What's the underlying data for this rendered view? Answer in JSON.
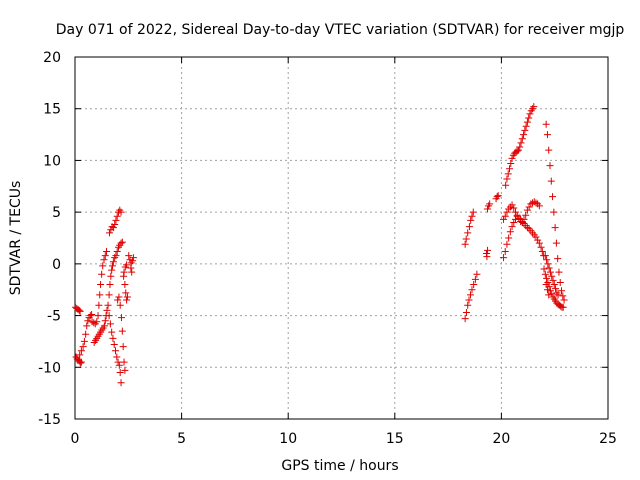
{
  "chart_data": {
    "type": "scatter",
    "title": "Day 071 of 2022, Sidereal Day-to-day VTEC variation (SDTVAR) for receiver mgjp",
    "xlabel": "GPS time / hours",
    "ylabel": "SDTVAR / TECUs",
    "xlim": [
      0,
      25
    ],
    "ylim": [
      -15,
      20
    ],
    "xticks": [
      0,
      5,
      10,
      15,
      20,
      25
    ],
    "yticks": [
      -15,
      -10,
      -5,
      0,
      5,
      10,
      15,
      20
    ],
    "grid": true,
    "marker": "+",
    "series": [
      {
        "name": "SDTVAR",
        "color": "#e00000",
        "points": [
          [
            0.02,
            -4.2
          ],
          [
            0.08,
            -4.3
          ],
          [
            0.14,
            -4.4
          ],
          [
            0.2,
            -4.5
          ],
          [
            0.24,
            -4.6
          ],
          [
            0.05,
            -9.0
          ],
          [
            0.1,
            -9.2
          ],
          [
            0.15,
            -9.3
          ],
          [
            0.2,
            -9.4
          ],
          [
            0.25,
            -9.6
          ],
          [
            0.3,
            -9.5
          ],
          [
            0.22,
            -8.8
          ],
          [
            0.3,
            -8.4
          ],
          [
            0.38,
            -8.0
          ],
          [
            0.44,
            -7.5
          ],
          [
            0.5,
            -6.8
          ],
          [
            0.55,
            -6.0
          ],
          [
            0.6,
            -5.5
          ],
          [
            0.66,
            -5.2
          ],
          [
            0.72,
            -5.0
          ],
          [
            0.78,
            -4.9
          ],
          [
            0.8,
            -5.6
          ],
          [
            0.88,
            -5.7
          ],
          [
            0.95,
            -5.8
          ],
          [
            1.02,
            -5.6
          ],
          [
            1.08,
            -5.0
          ],
          [
            1.12,
            -4.0
          ],
          [
            1.16,
            -3.0
          ],
          [
            1.2,
            -2.0
          ],
          [
            1.25,
            -1.0
          ],
          [
            1.3,
            -0.2
          ],
          [
            1.36,
            0.4
          ],
          [
            1.42,
            0.8
          ],
          [
            1.48,
            1.2
          ],
          [
            0.9,
            -7.6
          ],
          [
            0.96,
            -7.4
          ],
          [
            1.02,
            -7.2
          ],
          [
            1.08,
            -7.0
          ],
          [
            1.14,
            -6.8
          ],
          [
            1.2,
            -6.6
          ],
          [
            1.26,
            -6.4
          ],
          [
            1.32,
            -6.2
          ],
          [
            1.38,
            -6.0
          ],
          [
            1.42,
            -5.5
          ],
          [
            1.46,
            -5.0
          ],
          [
            1.5,
            -4.5
          ],
          [
            1.55,
            -4.0
          ],
          [
            1.6,
            -3.0
          ],
          [
            1.64,
            -2.0
          ],
          [
            1.68,
            -1.2
          ],
          [
            1.72,
            -0.6
          ],
          [
            1.76,
            -0.2
          ],
          [
            1.8,
            0.2
          ],
          [
            1.86,
            0.6
          ],
          [
            1.92,
            0.8
          ],
          [
            1.98,
            1.2
          ],
          [
            2.04,
            1.6
          ],
          [
            2.1,
            1.8
          ],
          [
            2.16,
            2.0
          ],
          [
            2.22,
            2.1
          ],
          [
            1.62,
            3.0
          ],
          [
            1.68,
            3.3
          ],
          [
            1.74,
            3.6
          ],
          [
            1.8,
            3.5
          ],
          [
            1.86,
            3.8
          ],
          [
            1.92,
            4.2
          ],
          [
            1.98,
            4.6
          ],
          [
            2.04,
            5.0
          ],
          [
            2.1,
            5.2
          ],
          [
            2.16,
            5.0
          ],
          [
            1.6,
            -5.0
          ],
          [
            1.66,
            -5.8
          ],
          [
            1.72,
            -6.6
          ],
          [
            1.78,
            -7.2
          ],
          [
            1.84,
            -7.8
          ],
          [
            1.9,
            -8.4
          ],
          [
            1.96,
            -9.0
          ],
          [
            2.02,
            -9.5
          ],
          [
            2.08,
            -9.8
          ],
          [
            2.12,
            -10.5
          ],
          [
            2.16,
            -11.5
          ],
          [
            2.0,
            -3.5
          ],
          [
            2.06,
            -3.2
          ],
          [
            2.12,
            -4.0
          ],
          [
            2.18,
            -5.2
          ],
          [
            2.22,
            -6.5
          ],
          [
            2.26,
            -8.0
          ],
          [
            2.3,
            -9.5
          ],
          [
            2.34,
            -10.3
          ],
          [
            2.28,
            -1.2
          ],
          [
            2.34,
            -2.0
          ],
          [
            2.38,
            -2.8
          ],
          [
            2.42,
            -3.5
          ],
          [
            2.46,
            -3.2
          ],
          [
            2.3,
            -0.8
          ],
          [
            2.36,
            -0.3
          ],
          [
            2.42,
            -0.1
          ],
          [
            2.52,
            0.8
          ],
          [
            2.58,
            0.4
          ],
          [
            2.64,
            0.1
          ],
          [
            2.7,
            0.3
          ],
          [
            2.74,
            0.6
          ],
          [
            2.62,
            -0.4
          ],
          [
            2.66,
            -0.8
          ],
          [
            18.3,
            1.9
          ],
          [
            18.35,
            2.4
          ],
          [
            18.42,
            3.0
          ],
          [
            18.5,
            3.6
          ],
          [
            18.56,
            4.2
          ],
          [
            18.62,
            4.6
          ],
          [
            18.68,
            5.0
          ],
          [
            18.3,
            -5.3
          ],
          [
            18.36,
            -4.7
          ],
          [
            18.42,
            -4.0
          ],
          [
            18.48,
            -3.5
          ],
          [
            18.55,
            -3.0
          ],
          [
            18.62,
            -2.5
          ],
          [
            18.7,
            -2.0
          ],
          [
            18.78,
            -1.5
          ],
          [
            18.85,
            -1.0
          ],
          [
            19.3,
            1.0
          ],
          [
            19.35,
            1.3
          ],
          [
            19.32,
            0.7
          ],
          [
            19.35,
            5.3
          ],
          [
            19.4,
            5.6
          ],
          [
            19.45,
            5.8
          ],
          [
            19.75,
            6.3
          ],
          [
            19.8,
            6.5
          ],
          [
            19.85,
            6.6
          ],
          [
            20.1,
            0.6
          ],
          [
            20.18,
            1.2
          ],
          [
            20.26,
            1.9
          ],
          [
            20.34,
            2.5
          ],
          [
            20.42,
            3.1
          ],
          [
            20.5,
            3.6
          ],
          [
            20.58,
            4.0
          ],
          [
            20.66,
            4.3
          ],
          [
            20.74,
            4.6
          ],
          [
            20.82,
            4.4
          ],
          [
            20.9,
            4.3
          ],
          [
            20.98,
            4.1
          ],
          [
            21.06,
            3.9
          ],
          [
            21.14,
            3.7
          ],
          [
            21.22,
            3.5
          ],
          [
            21.3,
            3.4
          ],
          [
            21.38,
            3.2
          ],
          [
            21.46,
            3.0
          ],
          [
            21.54,
            2.8
          ],
          [
            21.62,
            2.6
          ],
          [
            21.7,
            2.3
          ],
          [
            21.78,
            2.0
          ],
          [
            21.86,
            1.6
          ],
          [
            21.92,
            1.2
          ],
          [
            21.98,
            0.8
          ],
          [
            20.1,
            4.3
          ],
          [
            20.18,
            4.6
          ],
          [
            20.26,
            5.0
          ],
          [
            20.34,
            5.3
          ],
          [
            20.42,
            5.5
          ],
          [
            20.5,
            5.7
          ],
          [
            20.58,
            5.4
          ],
          [
            20.66,
            5.0
          ],
          [
            20.74,
            4.7
          ],
          [
            20.82,
            4.4
          ],
          [
            20.9,
            4.1
          ],
          [
            20.98,
            4.0
          ],
          [
            21.06,
            4.3
          ],
          [
            21.14,
            4.7
          ],
          [
            21.22,
            5.2
          ],
          [
            21.3,
            5.5
          ],
          [
            21.38,
            5.8
          ],
          [
            21.46,
            5.9
          ],
          [
            21.54,
            6.0
          ],
          [
            21.62,
            5.9
          ],
          [
            21.7,
            5.8
          ],
          [
            21.78,
            5.6
          ],
          [
            20.2,
            7.6
          ],
          [
            20.26,
            8.2
          ],
          [
            20.32,
            8.7
          ],
          [
            20.38,
            9.2
          ],
          [
            20.44,
            9.7
          ],
          [
            20.5,
            10.2
          ],
          [
            20.56,
            10.5
          ],
          [
            20.62,
            10.7
          ],
          [
            20.68,
            10.8
          ],
          [
            20.74,
            10.9
          ],
          [
            20.8,
            11.0
          ],
          [
            20.86,
            11.3
          ],
          [
            20.92,
            11.7
          ],
          [
            20.98,
            12.1
          ],
          [
            21.04,
            12.5
          ],
          [
            21.1,
            12.9
          ],
          [
            21.16,
            13.3
          ],
          [
            21.22,
            13.7
          ],
          [
            21.28,
            14.1
          ],
          [
            21.34,
            14.5
          ],
          [
            21.4,
            14.8
          ],
          [
            21.46,
            15.0
          ],
          [
            21.52,
            15.2
          ],
          [
            22.1,
            13.5
          ],
          [
            22.16,
            12.5
          ],
          [
            22.22,
            11.0
          ],
          [
            22.28,
            9.5
          ],
          [
            22.34,
            8.0
          ],
          [
            22.4,
            6.5
          ],
          [
            22.46,
            5.0
          ],
          [
            22.52,
            3.5
          ],
          [
            22.58,
            2.0
          ],
          [
            22.64,
            0.5
          ],
          [
            22.7,
            -0.8
          ],
          [
            22.76,
            -1.8
          ],
          [
            22.82,
            -2.6
          ],
          [
            22.88,
            -3.1
          ],
          [
            22.94,
            -3.5
          ],
          [
            22.0,
            -0.5
          ],
          [
            22.06,
            -1.0
          ],
          [
            22.12,
            -1.4
          ],
          [
            22.18,
            -1.8
          ],
          [
            22.24,
            -2.2
          ],
          [
            22.3,
            -2.6
          ],
          [
            22.36,
            -2.9
          ],
          [
            22.42,
            -3.2
          ],
          [
            22.48,
            -3.4
          ],
          [
            22.54,
            -3.6
          ],
          [
            22.6,
            -3.8
          ],
          [
            22.66,
            -3.9
          ],
          [
            22.72,
            -4.0
          ],
          [
            22.78,
            -4.1
          ],
          [
            22.84,
            -4.2
          ],
          [
            22.9,
            -4.2
          ],
          [
            22.06,
            0.8
          ],
          [
            22.12,
            0.4
          ],
          [
            22.18,
            0.0
          ],
          [
            22.24,
            -0.4
          ],
          [
            22.3,
            -0.8
          ],
          [
            22.36,
            -1.2
          ],
          [
            22.42,
            -1.6
          ],
          [
            22.48,
            -2.0
          ],
          [
            22.54,
            -2.4
          ],
          [
            22.6,
            -2.8
          ],
          [
            22.66,
            -3.0
          ],
          [
            22.1,
            -2.0
          ],
          [
            22.16,
            -2.5
          ],
          [
            22.22,
            -3.0
          ]
        ]
      }
    ]
  }
}
